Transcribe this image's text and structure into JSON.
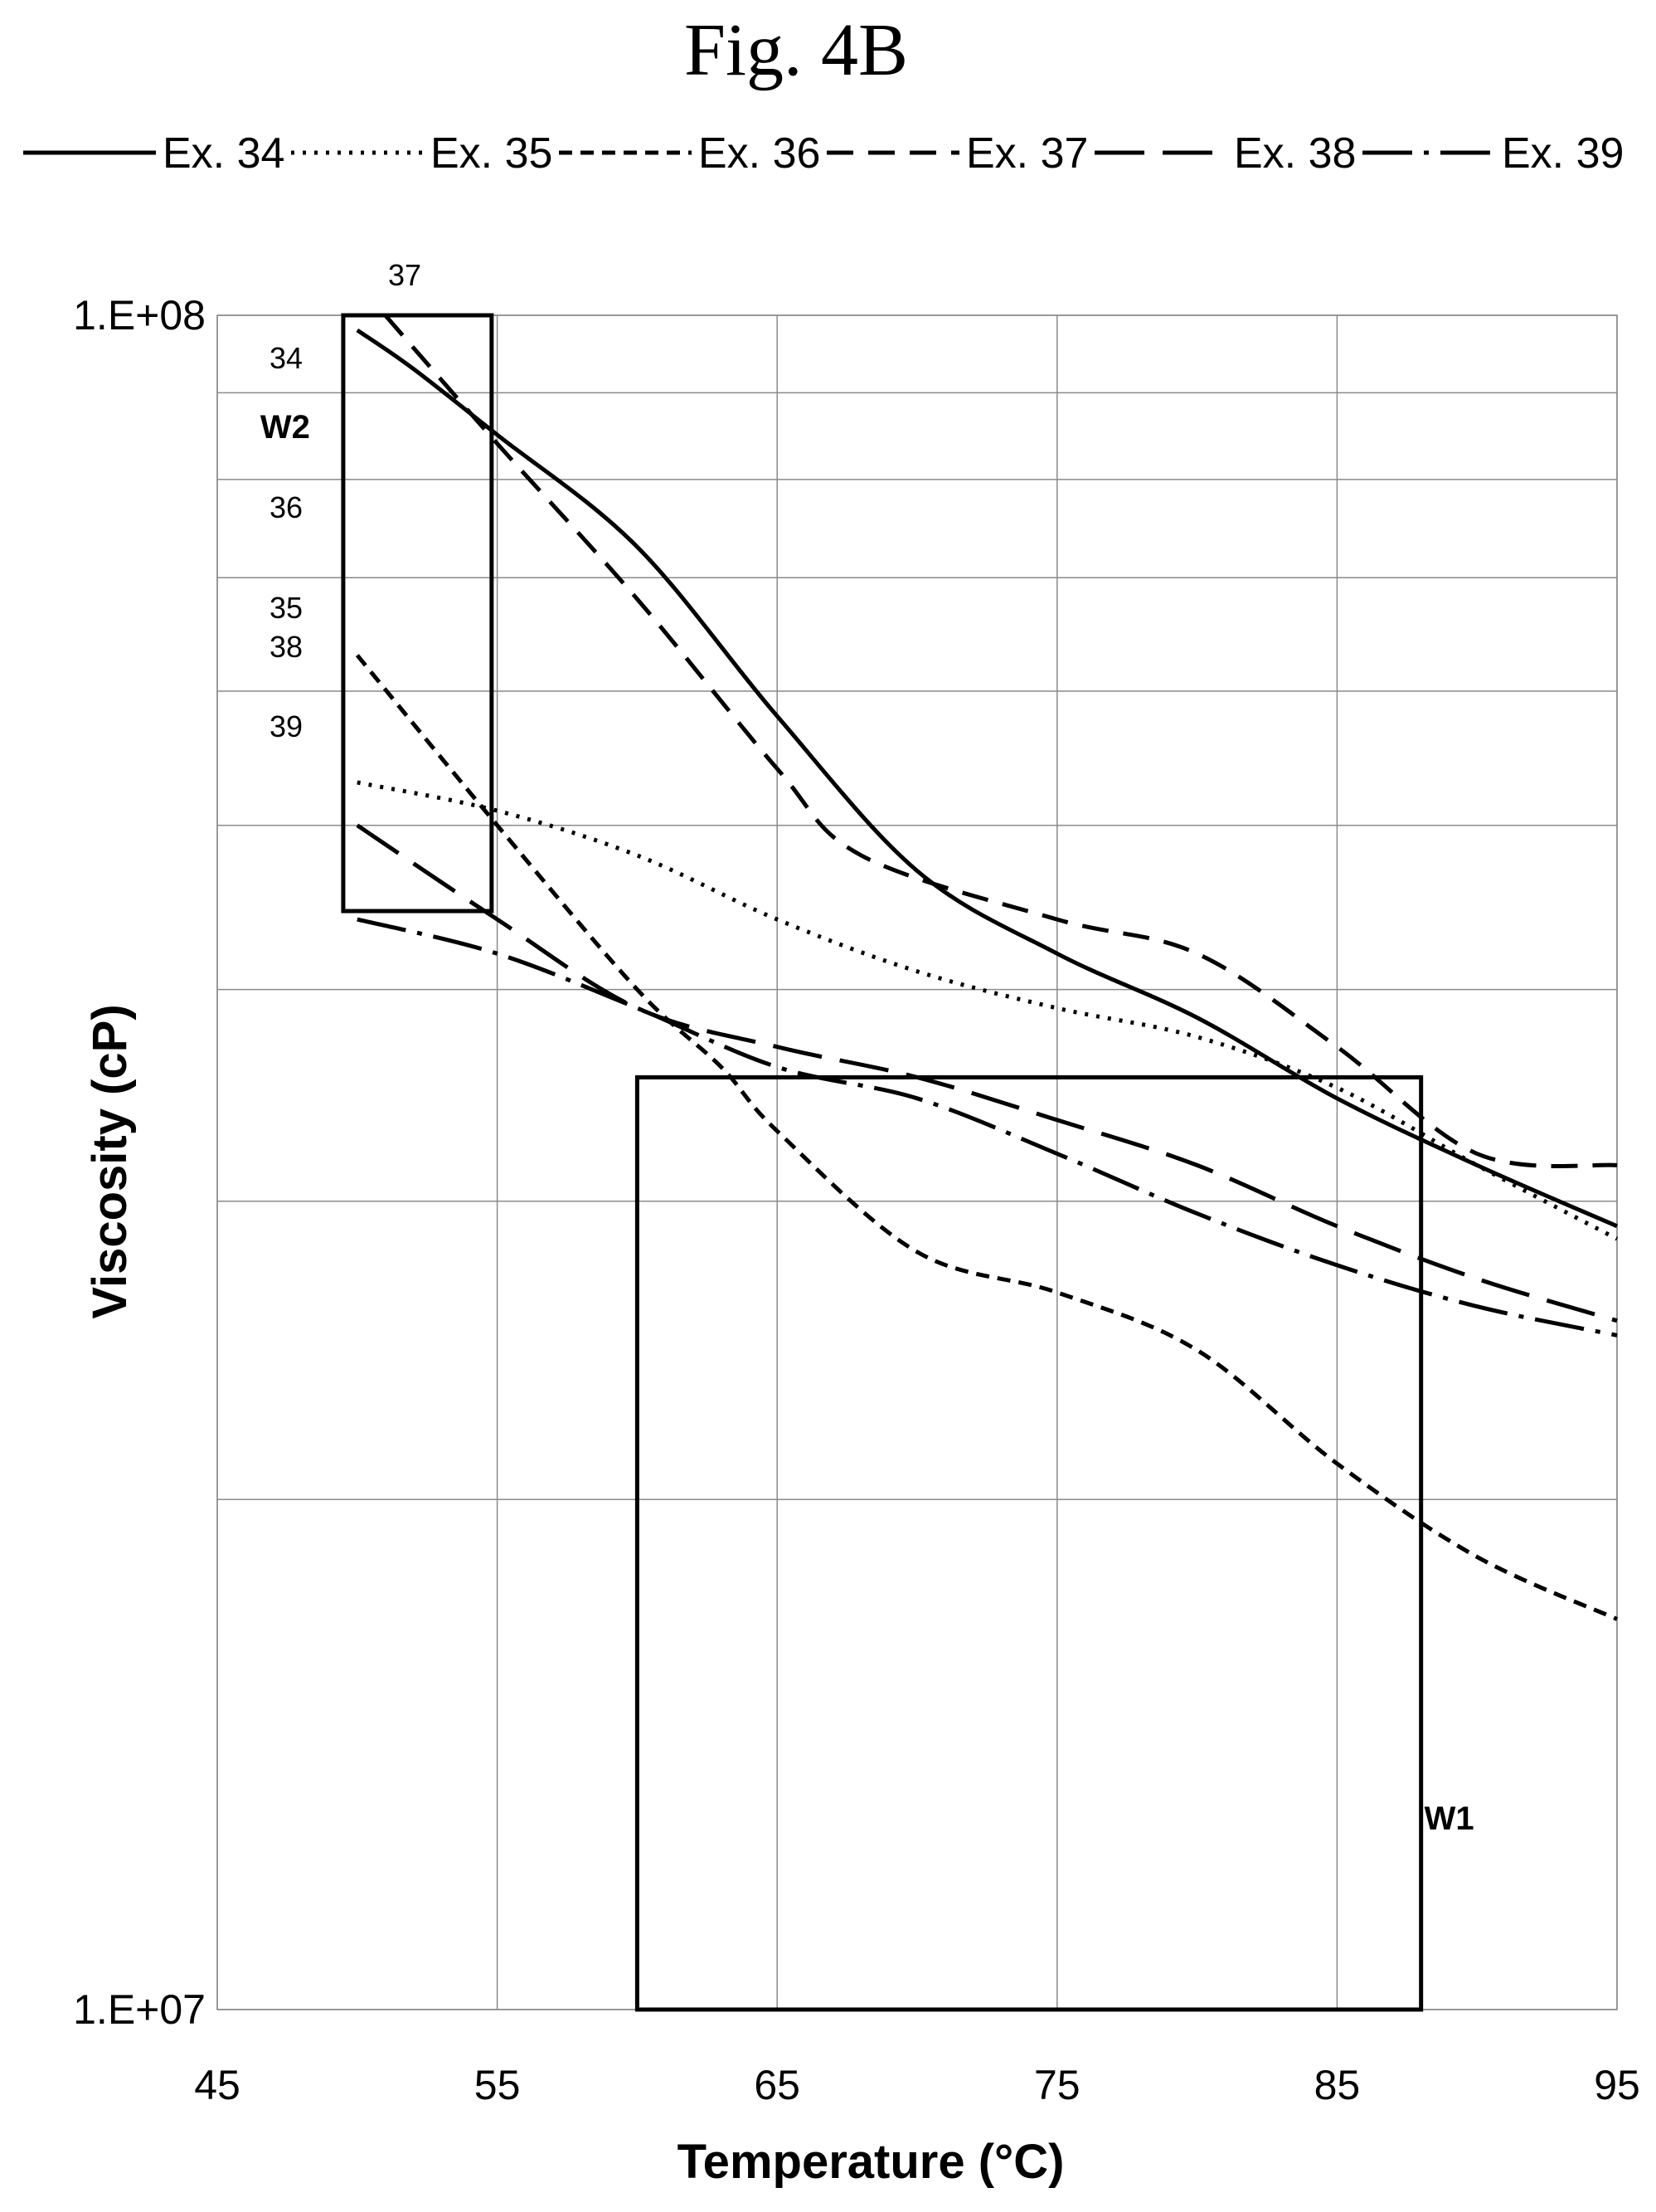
{
  "chart_data": {
    "type": "line",
    "title": "Fig. 4B",
    "xlabel": "Temperature (°C)",
    "ylabel": "Viscosity (cP)",
    "xlim": [
      45,
      95
    ],
    "ylim": [
      10000000,
      100000000
    ],
    "yscale": "log",
    "x_ticks": [
      "45",
      "55",
      "65",
      "75",
      "85",
      "95"
    ],
    "y_ticks": [
      "1.E+07",
      "1.E+08"
    ],
    "grid": true,
    "legend_position": "top",
    "series": [
      {
        "name": "Ex. 34",
        "label": "34",
        "x": [
          50,
          52,
          55,
          60,
          65,
          70,
          75,
          80,
          85,
          90,
          95
        ],
        "y": [
          98000000,
          93000000,
          85000000,
          73000000,
          58000000,
          47000000,
          42000000,
          38500000,
          34500000,
          31500000,
          29000000
        ]
      },
      {
        "name": "Ex. 35",
        "label": "35",
        "x": [
          50,
          55,
          60,
          65,
          70,
          75,
          80,
          85,
          90,
          95
        ],
        "y": [
          53000000,
          51000000,
          48000000,
          44000000,
          41000000,
          39000000,
          37500000,
          35000000,
          31500000,
          28500000
        ]
      },
      {
        "name": "Ex. 36",
        "label": "36",
        "x": [
          50,
          55,
          60,
          63,
          65,
          70,
          75,
          80,
          85,
          90,
          95
        ],
        "y": [
          63000000,
          50000000,
          40000000,
          36000000,
          33000000,
          28000000,
          26500000,
          24500000,
          21000000,
          18500000,
          17000000
        ]
      },
      {
        "name": "Ex. 37",
        "label": "37",
        "x": [
          51,
          55,
          60,
          65,
          68,
          75,
          80,
          85,
          90,
          95
        ],
        "y": [
          100000000,
          84000000,
          68000000,
          54000000,
          48000000,
          44000000,
          42000000,
          37000000,
          32000000,
          31500000
        ]
      },
      {
        "name": "Ex. 38",
        "label": "38",
        "x": [
          50,
          55,
          60,
          65,
          70,
          75,
          80,
          85,
          90,
          95
        ],
        "y": [
          50000000,
          44000000,
          39000000,
          37000000,
          35500000,
          33500000,
          31500000,
          29000000,
          27000000,
          25500000
        ]
      },
      {
        "name": "Ex. 39",
        "label": "39",
        "x": [
          50,
          55,
          60,
          65,
          70,
          75,
          80,
          85,
          90,
          95
        ],
        "y": [
          44000000,
          42000000,
          39000000,
          36000000,
          34500000,
          32000000,
          29500000,
          27500000,
          26000000,
          25000000
        ]
      }
    ],
    "annotations": [
      {
        "text": "W2",
        "x_range": [
          49.5,
          54.8
        ],
        "y_range": [
          44500000,
          100000000
        ]
      },
      {
        "text": "W1",
        "x_range": [
          60,
          88
        ],
        "y_range": [
          10000000,
          35500000
        ]
      }
    ]
  }
}
